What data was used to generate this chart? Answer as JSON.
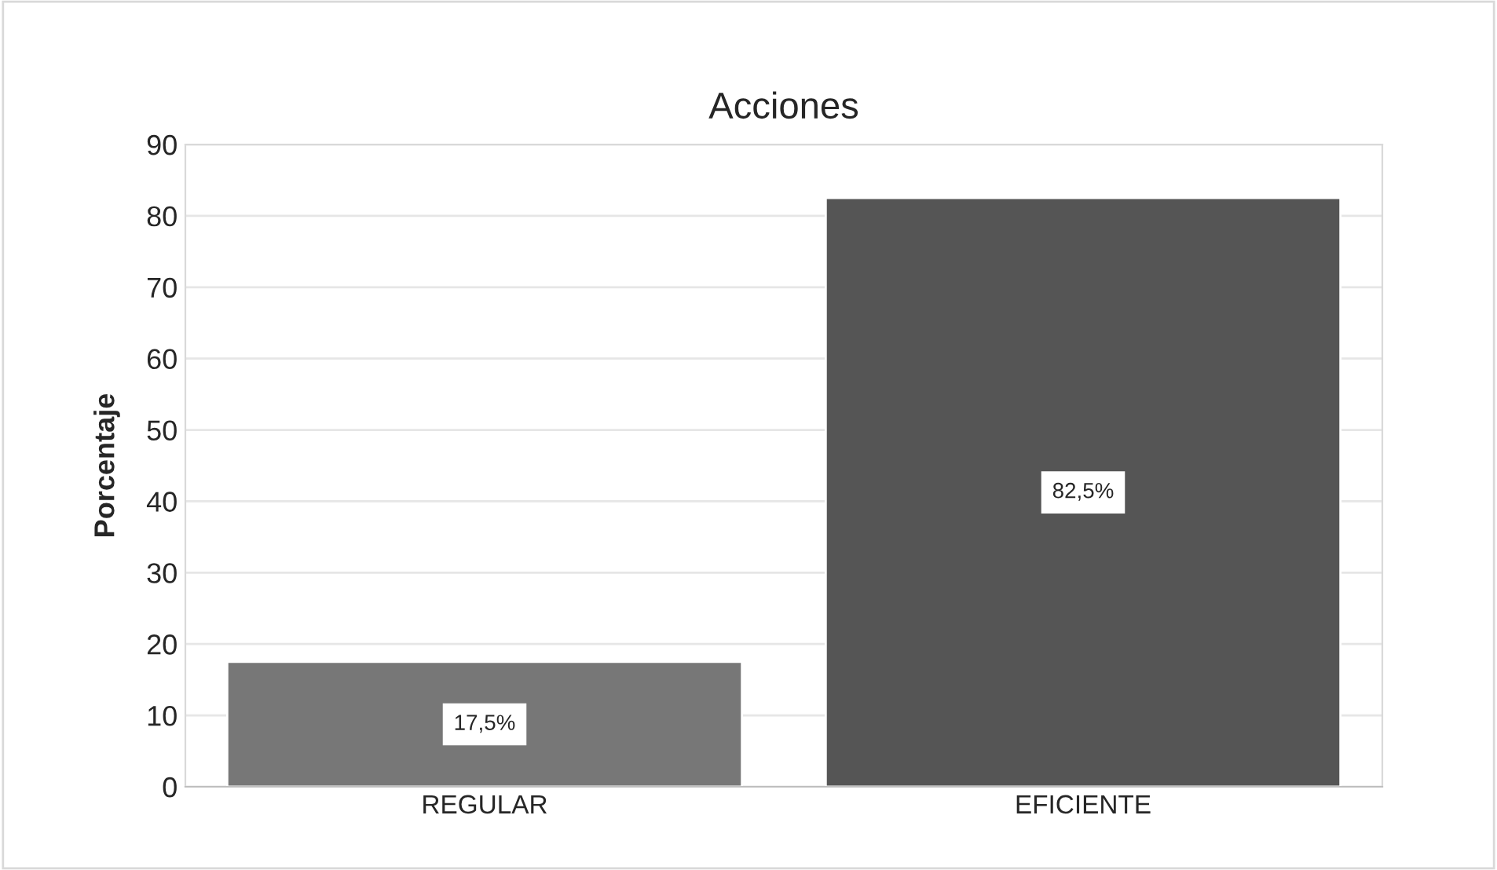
{
  "chart_data": {
    "type": "bar",
    "title": "Acciones",
    "ylabel": "Porcentaje",
    "categories": [
      "REGULAR",
      "EFICIENTE"
    ],
    "values": [
      17.5,
      82.5
    ],
    "colors": [
      "#777777",
      "#555555"
    ],
    "value_labels": [
      "17,5%",
      "82,5%"
    ],
    "ylim": [
      0,
      90
    ],
    "yticks": [
      0,
      10,
      20,
      30,
      40,
      50,
      60,
      70,
      80,
      90
    ],
    "grid": "y",
    "legend": false
  }
}
